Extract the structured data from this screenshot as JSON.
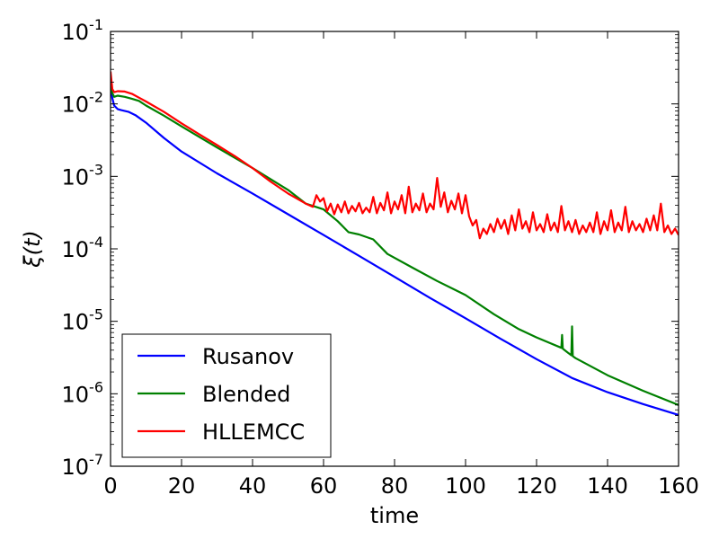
{
  "chart_data": {
    "type": "line",
    "xlabel": "time",
    "ylabel": "ξ(t)",
    "xlim": [
      0,
      160
    ],
    "ylim": [
      1e-07,
      0.1
    ],
    "yscale": "log",
    "x_ticks": [
      0,
      20,
      40,
      60,
      80,
      100,
      120,
      140,
      160
    ],
    "y_ticks": [
      {
        "value": 1e-07,
        "base": "10",
        "exp": "-7"
      },
      {
        "value": 1e-06,
        "base": "10",
        "exp": "-6"
      },
      {
        "value": 1e-05,
        "base": "10",
        "exp": "-5"
      },
      {
        "value": 0.0001,
        "base": "10",
        "exp": "-4"
      },
      {
        "value": 0.001,
        "base": "10",
        "exp": "-3"
      },
      {
        "value": 0.01,
        "base": "10",
        "exp": "-2"
      },
      {
        "value": 0.1,
        "base": "10",
        "exp": "-1"
      }
    ],
    "grid": false,
    "legend_position": "lower-left",
    "series": [
      {
        "name": "Rusanov",
        "color": "#0000ff",
        "x": [
          0,
          0.5,
          1,
          2,
          3,
          5,
          7,
          10,
          15,
          20,
          30,
          40,
          50,
          60,
          70,
          80,
          90,
          100,
          110,
          120,
          130,
          140,
          150,
          160
        ],
        "y": [
          0.018,
          0.012,
          0.0095,
          0.0085,
          0.0082,
          0.0078,
          0.007,
          0.0055,
          0.0034,
          0.0022,
          0.0011,
          0.00058,
          0.0003,
          0.000155,
          8e-05,
          4.1e-05,
          2.1e-05,
          1.1e-05,
          5.7e-06,
          3e-06,
          1.65e-06,
          1.05e-06,
          7.2e-07,
          5.1e-07
        ]
      },
      {
        "name": "Blended",
        "color": "#008000",
        "x": [
          0,
          0.5,
          1,
          2,
          4,
          6,
          8,
          10,
          15,
          20,
          30,
          40,
          50,
          55,
          60,
          64,
          67,
          70,
          74,
          78,
          85,
          92,
          100,
          108,
          115,
          120,
          127,
          127.2,
          127.4,
          128.5,
          129.8,
          130,
          130.2,
          131,
          140,
          150,
          160
        ],
        "y": [
          0.02,
          0.014,
          0.0125,
          0.013,
          0.0125,
          0.0118,
          0.011,
          0.0095,
          0.0069,
          0.0049,
          0.0025,
          0.0013,
          0.00065,
          0.00042,
          0.00035,
          0.00024,
          0.00017,
          0.000158,
          0.000135,
          8.5e-05,
          5.5e-05,
          3.6e-05,
          2.3e-05,
          1.25e-05,
          7.8e-06,
          6e-06,
          4.3e-06,
          6.5e-06,
          4.2e-06,
          3.8e-06,
          3.4e-06,
          8.5e-06,
          3.3e-06,
          3.1e-06,
          1.8e-06,
          1.1e-06,
          7e-07
        ]
      },
      {
        "name": "HLLEMCC",
        "color": "#ff0000",
        "x": [
          0,
          0.5,
          1,
          2,
          4,
          6,
          8,
          10,
          15,
          20,
          25,
          30,
          35,
          40,
          45,
          50,
          55,
          57,
          58,
          59,
          60,
          61,
          62,
          63,
          64,
          65,
          66,
          67,
          68,
          69,
          70,
          71,
          72,
          73,
          74,
          75,
          76,
          77,
          78,
          79,
          80,
          81,
          82,
          83,
          84,
          85,
          86,
          87,
          88,
          89,
          90,
          91,
          92,
          93,
          94,
          95,
          96,
          97,
          98,
          99,
          100,
          101,
          102,
          103,
          104,
          105,
          106,
          107,
          108,
          109,
          110,
          111,
          112,
          113,
          114,
          115,
          116,
          117,
          118,
          119,
          120,
          121,
          122,
          123,
          124,
          125,
          126,
          127,
          128,
          129,
          130,
          131,
          132,
          133,
          134,
          135,
          136,
          137,
          138,
          139,
          140,
          141,
          142,
          143,
          144,
          145,
          146,
          147,
          148,
          149,
          150,
          151,
          152,
          153,
          154,
          155,
          156,
          157,
          158,
          159,
          160
        ],
        "y": [
          0.028,
          0.016,
          0.0145,
          0.015,
          0.0148,
          0.0138,
          0.0122,
          0.0108,
          0.0078,
          0.0054,
          0.0038,
          0.0027,
          0.0019,
          0.0013,
          0.00085,
          0.00058,
          0.00042,
          0.00038,
          0.00055,
          0.00045,
          0.0005,
          0.00033,
          0.00042,
          0.0003,
          0.00041,
          0.00032,
          0.00045,
          0.00031,
          0.00039,
          0.00033,
          0.00043,
          0.00031,
          0.00037,
          0.00032,
          0.00052,
          0.00031,
          0.00043,
          0.00034,
          0.0006,
          0.00031,
          0.00045,
          0.00035,
          0.00055,
          0.00031,
          0.00072,
          0.00032,
          0.00042,
          0.00034,
          0.00058,
          0.00032,
          0.00042,
          0.00035,
          0.00095,
          0.00038,
          0.0006,
          0.00032,
          0.00046,
          0.00035,
          0.00058,
          0.00031,
          0.00055,
          0.00028,
          0.00021,
          0.00025,
          0.00014,
          0.00019,
          0.00016,
          0.00022,
          0.00017,
          0.00026,
          0.00019,
          0.00025,
          0.00016,
          0.00029,
          0.00018,
          0.00035,
          0.00019,
          0.00024,
          0.00017,
          0.00032,
          0.00018,
          0.00022,
          0.00017,
          0.0003,
          0.00018,
          0.00023,
          0.00017,
          0.00039,
          0.00018,
          0.00024,
          0.00017,
          0.00025,
          0.00016,
          0.00021,
          0.00017,
          0.00023,
          0.00017,
          0.00032,
          0.00016,
          0.00024,
          0.00018,
          0.00034,
          0.00017,
          0.00023,
          0.00018,
          0.00038,
          0.00017,
          0.00024,
          0.00018,
          0.00022,
          0.00017,
          0.00026,
          0.00018,
          0.00029,
          0.00018,
          0.00042,
          0.00017,
          0.00021,
          0.00016,
          0.00019,
          0.000155
        ]
      }
    ]
  }
}
